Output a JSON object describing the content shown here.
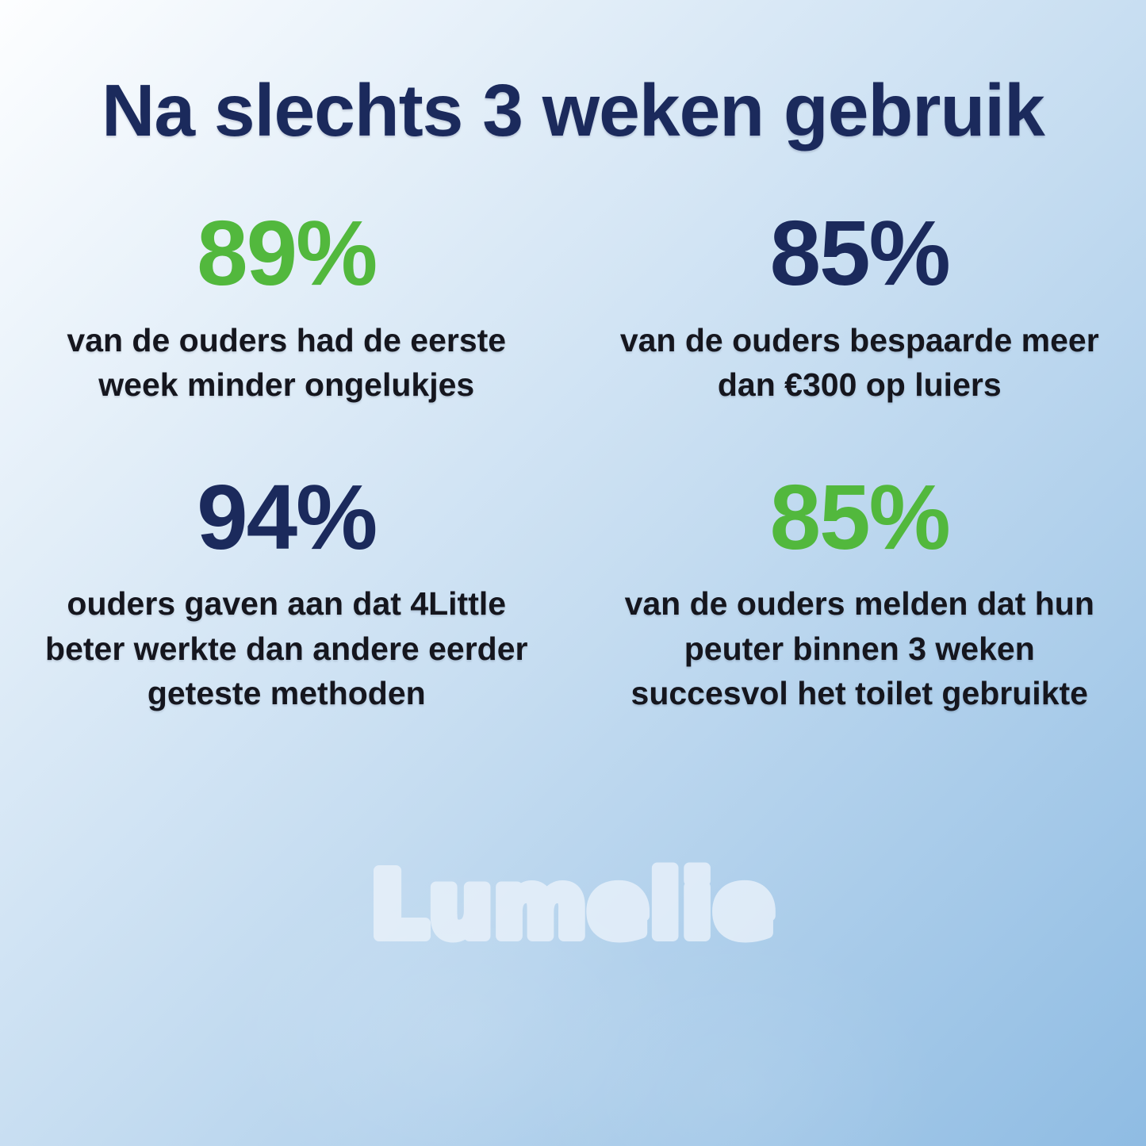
{
  "title": "Na slechts 3 weken gebruik",
  "colors": {
    "navy": "#1B2A5C",
    "green": "#52B83D",
    "text": "#15161E",
    "bg_start": "#FDFEFF",
    "bg_mid": "#C6DDF1",
    "bg_end": "#8FBCE3",
    "logo": "#EAF2FB"
  },
  "stats": [
    {
      "value": "89%",
      "color": "green",
      "description": "van de ouders had de eerste week minder ongelukjes"
    },
    {
      "value": "85%",
      "color": "navy",
      "description": "van de ouders bespaarde meer dan €300 op luiers"
    },
    {
      "value": "94%",
      "color": "navy",
      "description": "ouders gaven aan dat 4Little beter werkte dan andere eerder geteste methoden"
    },
    {
      "value": "85%",
      "color": "green",
      "description": "van de ouders melden dat hun peuter binnen 3 weken succesvol het toilet gebruikte"
    }
  ],
  "logo": {
    "text": "Lumelie"
  },
  "chart_data": {
    "type": "table",
    "title": "Na slechts 3 weken gebruik",
    "categories": [
      "van de ouders had de eerste week minder ongelukjes",
      "van de ouders bespaarde meer dan €300 op luiers",
      "ouders gaven aan dat 4Little beter werkte dan andere eerder geteste methoden",
      "van de ouders melden dat hun peuter binnen 3 weken succesvol het toilet gebruikte"
    ],
    "values": [
      89,
      85,
      94,
      85
    ],
    "unit": "%",
    "value_colors": [
      "#52B83D",
      "#1B2A5C",
      "#1B2A5C",
      "#52B83D"
    ],
    "layout": "2x2-grid",
    "watermark": "Lumelie"
  }
}
